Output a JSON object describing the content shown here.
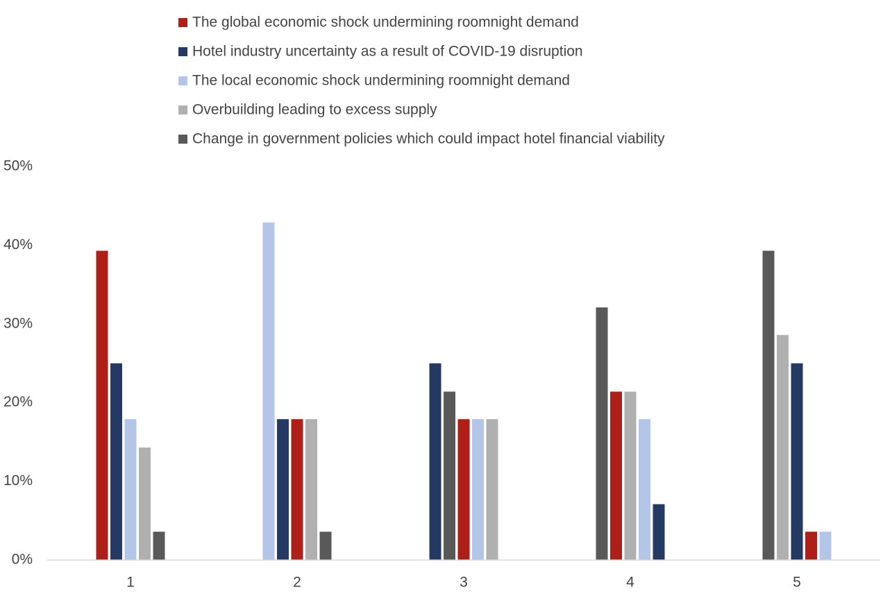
{
  "chart_data": {
    "type": "bar",
    "categories": [
      "1",
      "2",
      "3",
      "4",
      "5"
    ],
    "ylim": [
      0,
      50
    ],
    "yticks": [
      "0%",
      "10%",
      "20%",
      "30%",
      "40%",
      "50%"
    ],
    "grid": false,
    "legend_position": "top",
    "series": [
      {
        "name": "The global economic shock undermining roomnight demand",
        "color": "#AE1F1A",
        "values": [
          39.3,
          17.9,
          17.9,
          21.4,
          3.6
        ]
      },
      {
        "name": "Hotel industry uncertainty as a result of COVID-19 disruption",
        "color": "#243A63",
        "values": [
          25.0,
          17.9,
          25.0,
          7.1,
          25.0
        ]
      },
      {
        "name": "The local economic shock undermining roomnight demand",
        "color": "#B4C6E7",
        "values": [
          17.9,
          42.9,
          17.9,
          17.9,
          3.6
        ]
      },
      {
        "name": "Overbuilding leading to excess supply",
        "color": "#B0B0B0",
        "values": [
          14.3,
          17.9,
          17.9,
          21.4,
          28.6
        ]
      },
      {
        "name": "Change in government policies which could impact hotel financial viability",
        "color": "#595959",
        "values": [
          3.6,
          3.6,
          21.4,
          32.1,
          39.3
        ]
      }
    ],
    "bar_order": [
      [
        0,
        1,
        2,
        3,
        4
      ],
      [
        2,
        1,
        0,
        3,
        4
      ],
      [
        1,
        4,
        0,
        2,
        3
      ],
      [
        4,
        0,
        3,
        2,
        1
      ],
      [
        4,
        3,
        1,
        0,
        2
      ]
    ]
  }
}
